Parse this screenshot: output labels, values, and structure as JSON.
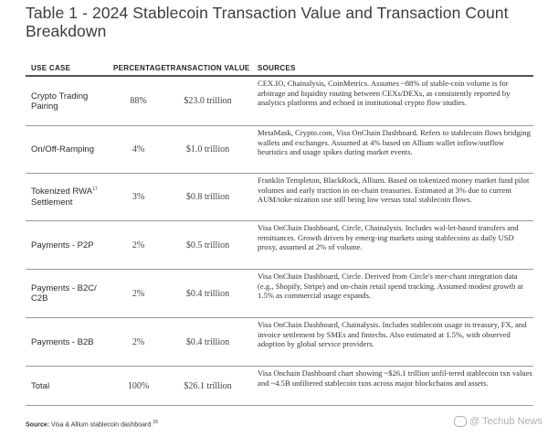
{
  "title": "Table 1 - 2024 Stablecoin Transaction Value and Transaction Count Breakdown",
  "headers": {
    "use_case": "USE CASE",
    "percentage": "PERCENTAGE",
    "transaction_value": "TRANSACTION VALUE",
    "sources": "SOURCES"
  },
  "rows": [
    {
      "use_case": "Crypto Trading Pairing",
      "percentage": "88%",
      "value": "$23.0 trillion",
      "sources": "CEX.IO, Chainalysis, CoinMetrics. Assumes ~88% of stable-coin volume is for arbitrage and liquidity routing between CEXs/DEXs, as consistently reported by analytics platforms and echoed in institutional crypto flow studies."
    },
    {
      "use_case": "On/Off-Ramping",
      "percentage": "4%",
      "value": "$1.0 trillion",
      "sources": "MetaMask, Crypto.com, Visa OnChain Dashboard. Refers to stablecoin flows bridging wallets and exchanges. Assumed at 4% based on Allium wallet inflow/outflow heuristics and usage spikes during market events."
    },
    {
      "use_case": "Tokenized RWA",
      "use_case_sup": "17",
      "use_case_line2": "Settlement",
      "percentage": "3%",
      "value": "$0.8 trillion",
      "sources": "Franklin Templeton, BlackRock, Allium. Based on tokenized money market fund pilot volumes and early traction in on-chain treasuries. Estimated at 3% due to current AUM/toke-nization use still being low versus total stablecoin flows."
    },
    {
      "use_case": "Payments - P2P",
      "percentage": "2%",
      "value": "$0.5 trillion",
      "sources": "Visa OnChain Dashboard, Circle, Chainalysis. Includes wal-let-based transfers and remittances. Growth driven by emerg-ing markets using stablecoins as daily USD proxy, assumed at 2% of volume."
    },
    {
      "use_case": "Payments - B2C/ C2B",
      "percentage": "2%",
      "value": "$0.4 trillion",
      "sources": "Visa OnChain Dashboard, Circle. Derived from Circle's mer-chant integration data (e.g., Shopify, Stripe) and on-chain retail spend tracking. Assumed modest growth at 1.5% as commercial usage expands."
    },
    {
      "use_case": "Payments - B2B",
      "percentage": "2%",
      "value": "$0.4 trillion",
      "sources": "Visa OnChain Dashboard, Chainalysis. Includes stablecoin usage in treasury, FX, and invoice settlement by SMEs and fintechs. Also estimated at 1.5%, with observed adoption by global service providers."
    },
    {
      "use_case": "Total",
      "percentage": "100%",
      "value": "$26.1 trillion",
      "sources": "Visa Onchain Dashboard chart showing ~$26.1 trillion unfil-tered stablecoin txn values and ~4.5B unfiltered stablecoin txns across major blockchains and assets."
    }
  ],
  "source_note": {
    "label": "Source:",
    "text": "Visa & Allium stablecoin dashboard.",
    "sup": "18"
  },
  "watermark": "@ Techub News"
}
